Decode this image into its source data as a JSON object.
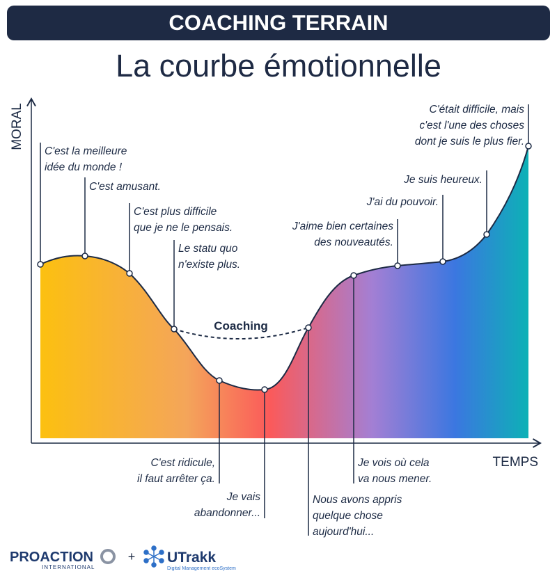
{
  "header": {
    "title": "COACHING TERRAIN",
    "subtitle": "La courbe émotionnelle"
  },
  "axes": {
    "y_label": "MORAL",
    "x_label": "TEMPS"
  },
  "curve_label": "Coaching",
  "annotations": [
    {
      "lines": [
        "C'est la meilleure",
        "idée du monde !"
      ]
    },
    {
      "lines": [
        "C'est amusant."
      ]
    },
    {
      "lines": [
        "C'est plus difficile",
        "que je ne le pensais."
      ]
    },
    {
      "lines": [
        "Le statu quo",
        "n'existe plus."
      ]
    },
    {
      "lines": [
        "C'est ridicule,",
        "il faut arrêter ça."
      ]
    },
    {
      "lines": [
        "Je vais",
        "abandonner..."
      ]
    },
    {
      "lines": [
        "Nous avons appris",
        "quelque chose",
        "aujourd'hui..."
      ]
    },
    {
      "lines": [
        "Je vois où cela",
        "va nous mener."
      ]
    },
    {
      "lines": [
        "J'aime bien certaines",
        "des nouveautés."
      ]
    },
    {
      "lines": [
        "J'ai du pouvoir."
      ]
    },
    {
      "lines": [
        "Je suis heureux."
      ]
    },
    {
      "lines": [
        "C'était difficile, mais",
        "c'est l'une des choses",
        "dont je suis le plus fier."
      ]
    }
  ],
  "footer": {
    "brand1": "PROACTION",
    "brand1_sub": "INTERNATIONAL",
    "plus": "+",
    "brand2": "UTrakk",
    "brand2_sub": "Digital Management ecoSystem"
  }
}
